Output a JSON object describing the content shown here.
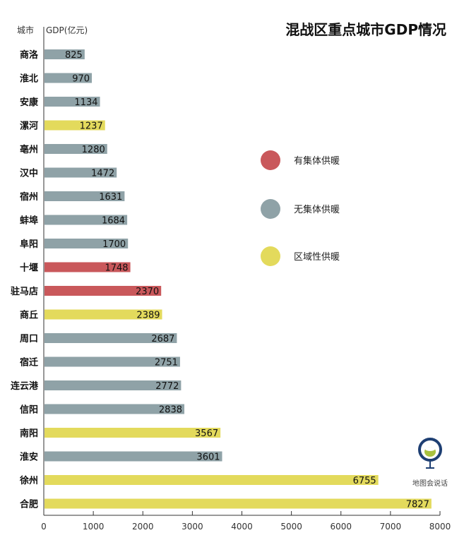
{
  "chart_data": {
    "type": "bar",
    "orientation": "horizontal",
    "title": "混战区重点城市GDP情况",
    "category_header": "城市",
    "value_header": "GDP(亿元)",
    "categories": [
      "商洛",
      "淮北",
      "安康",
      "漯河",
      "亳州",
      "汉中",
      "宿州",
      "蚌埠",
      "阜阳",
      "十堰",
      "驻马店",
      "商丘",
      "周口",
      "宿迁",
      "连云港",
      "信阳",
      "南阳",
      "淮安",
      "徐州",
      "合肥"
    ],
    "values": [
      825,
      970,
      1134,
      1237,
      1280,
      1472,
      1631,
      1684,
      1700,
      1748,
      2370,
      2389,
      2687,
      2751,
      2772,
      2838,
      3567,
      3601,
      6755,
      7827
    ],
    "groups": [
      "none",
      "none",
      "none",
      "regional",
      "none",
      "none",
      "none",
      "none",
      "none",
      "central",
      "central",
      "regional",
      "none",
      "none",
      "none",
      "none",
      "regional",
      "none",
      "regional",
      "regional"
    ],
    "xlim": [
      0,
      8000
    ],
    "xticks": [
      0,
      1000,
      2000,
      3000,
      4000,
      5000,
      6000,
      7000,
      8000
    ],
    "grid": false,
    "legend_position": "right",
    "legend": [
      {
        "key": "central",
        "label": "有集体供暖",
        "color": "#c9585b"
      },
      {
        "key": "none",
        "label": "无集体供暖",
        "color": "#8fa2a7"
      },
      {
        "key": "regional",
        "label": "区域性供暖",
        "color": "#e3da5c"
      }
    ]
  },
  "watermark": {
    "text": "地图会说话"
  }
}
